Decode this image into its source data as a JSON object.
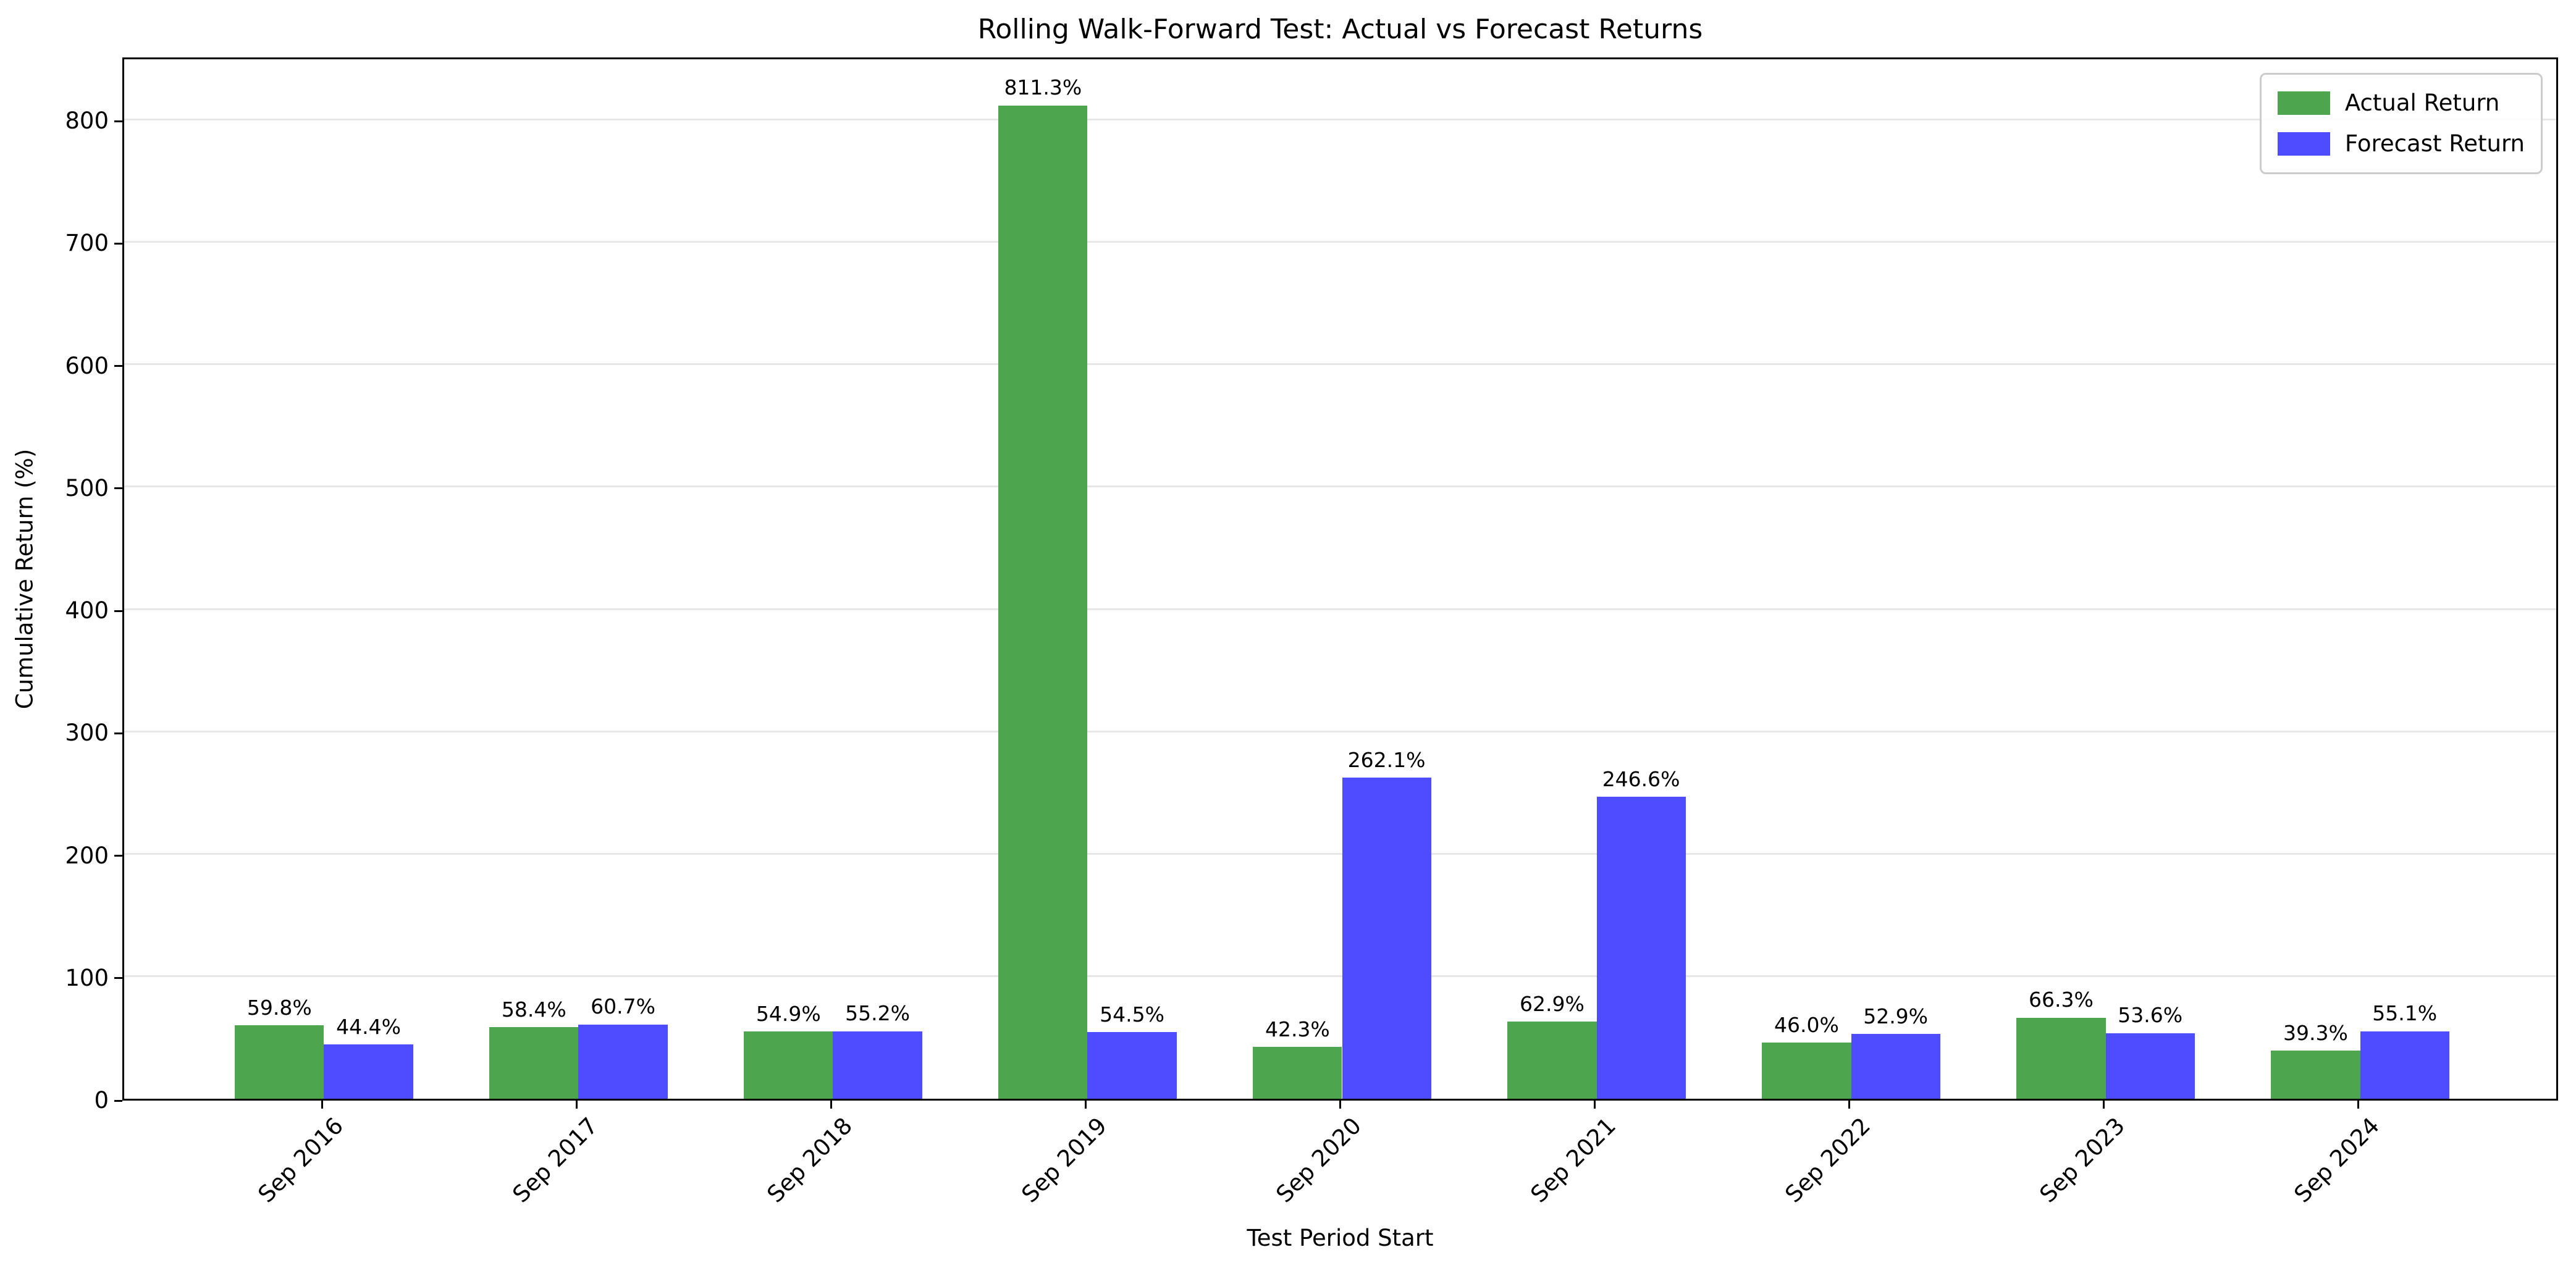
{
  "chart_data": {
    "type": "bar",
    "title": "Rolling Walk-Forward Test: Actual vs Forecast Returns",
    "xlabel": "Test Period Start",
    "ylabel": "Cumulative Return (%)",
    "categories": [
      "Sep 2016",
      "Sep 2017",
      "Sep 2018",
      "Sep 2019",
      "Sep 2020",
      "Sep 2021",
      "Sep 2022",
      "Sep 2023",
      "Sep 2024"
    ],
    "series": [
      {
        "name": "Actual Return",
        "color": "#4da64d",
        "values": [
          59.8,
          58.4,
          54.9,
          811.3,
          42.3,
          62.9,
          46.0,
          66.3,
          39.3
        ]
      },
      {
        "name": "Forecast Return",
        "color": "#4d4dff",
        "values": [
          44.4,
          60.7,
          55.2,
          54.5,
          262.1,
          246.6,
          52.9,
          53.6,
          55.1
        ]
      }
    ],
    "value_label_suffix": "%",
    "y_ticks": [
      0,
      100,
      200,
      300,
      400,
      500,
      600,
      700,
      800
    ],
    "ylim": [
      0,
      852
    ],
    "xlim": [
      -0.785,
      8.785
    ],
    "bar_width": 0.35,
    "grid": "horizontal-y",
    "grid_color": "#e7e7e7",
    "legend_position": "upper-right",
    "legend_border_color": "#cccccc",
    "background_color": "#ffffff",
    "text_color": "#000000"
  }
}
